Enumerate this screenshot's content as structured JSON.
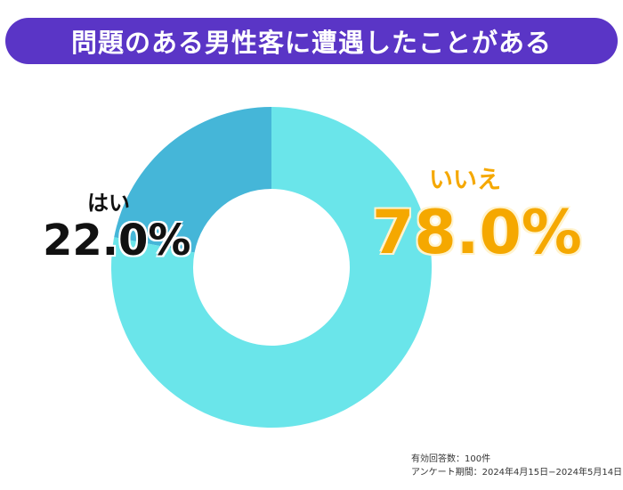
{
  "title": "問題のある男性客に遭遇したことがある",
  "chart_data": {
    "type": "pie",
    "variant": "donut",
    "slices": [
      {
        "label": "はい",
        "value": 22.0,
        "display": "22.0%",
        "color": "#45b6d8"
      },
      {
        "label": "いいえ",
        "value": 78.0,
        "display": "78.0%",
        "color": "#6ae5ea"
      }
    ]
  },
  "footnote": {
    "respondents": "有効回答数：100件",
    "period": "アンケート期間：2024年4月15日−2024年5月14日"
  },
  "colors": {
    "title_bg": "#5a35c6",
    "yes_text": "#111111",
    "no_text": "#f5a800"
  }
}
